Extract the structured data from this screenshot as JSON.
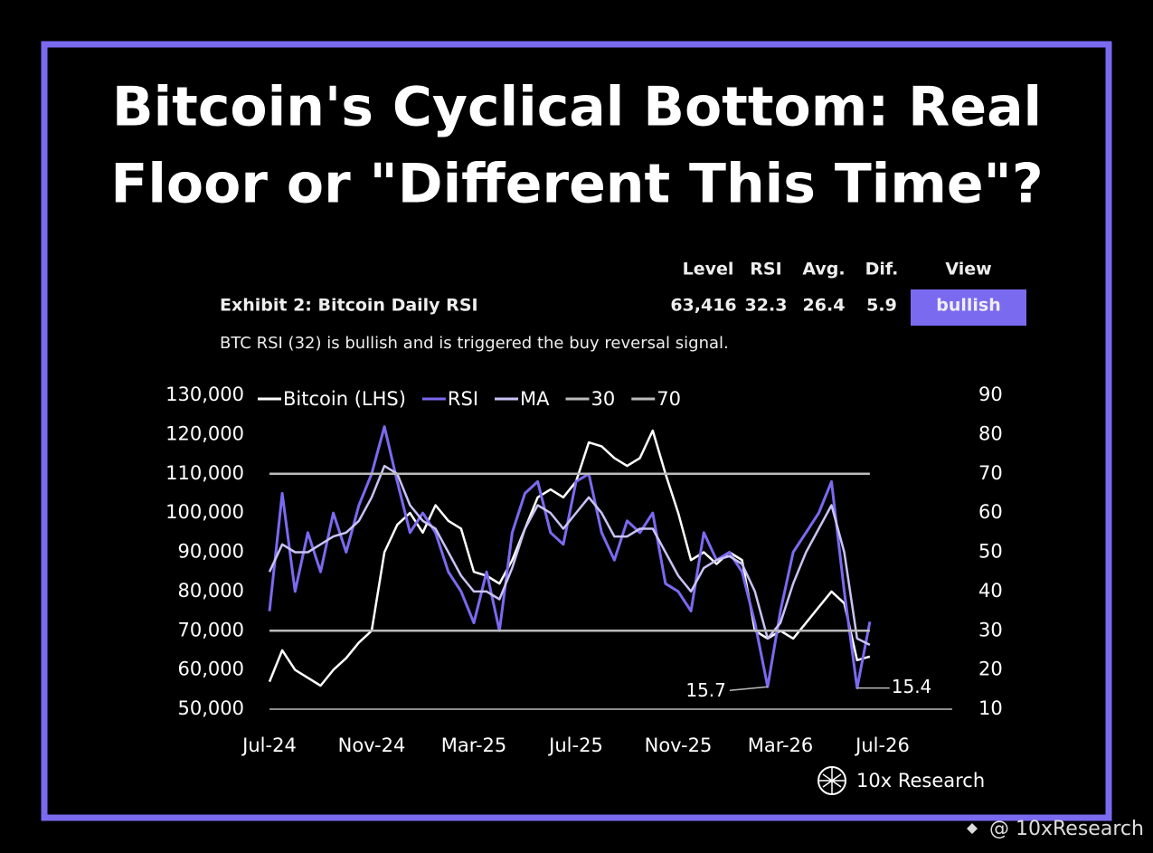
{
  "title": [
    "Bitcoin's Cyclical Bottom: Real",
    "Floor or \"Different This Time\"?"
  ],
  "summary": {
    "headers": [
      "Level",
      "RSI",
      "Avg.",
      "Dif.",
      "View"
    ],
    "label": "Exhibit 2: Bitcoin Daily RSI",
    "row": [
      "63,416",
      "32.3",
      "26.4",
      "5.9",
      "bullish"
    ]
  },
  "note": "BTC RSI (32) is bullish and is triggered the buy reversal signal.",
  "brand": "10x Research",
  "watermark": "@ 10xResearch",
  "chart_data": {
    "type": "line",
    "categories": [
      "Jul-24",
      null,
      null,
      null,
      null,
      null,
      null,
      null,
      "Nov-24",
      null,
      null,
      null,
      null,
      null,
      null,
      null,
      "Mar-25",
      null,
      null,
      null,
      null,
      null,
      null,
      null,
      "Jul-25",
      null,
      null,
      null,
      null,
      null,
      null,
      null,
      "Nov-25",
      null,
      null,
      null,
      null,
      null,
      null,
      null,
      "Mar-26",
      null,
      null,
      null,
      null,
      null,
      null,
      null,
      "Jul-26"
    ],
    "ylim": [
      50000,
      130000
    ],
    "yticks": [
      {
        "value": 50000,
        "label": "50,000"
      },
      {
        "value": 60000,
        "label": "60,000"
      },
      {
        "value": 70000,
        "label": "70,000"
      },
      {
        "value": 80000,
        "label": "80,000"
      },
      {
        "value": 90000,
        "label": "90,000"
      },
      {
        "value": 100000,
        "label": "100,000"
      },
      {
        "value": 110000,
        "label": "110,000"
      },
      {
        "value": 120000,
        "label": "120,000"
      },
      {
        "value": 130000,
        "label": "130,000"
      }
    ],
    "y2lim": [
      10,
      90
    ],
    "y2ticks": [
      10,
      20,
      30,
      40,
      50,
      60,
      70,
      80,
      90
    ],
    "series": [
      {
        "name": "Bitcoin (LHS)",
        "color": "#ffffff",
        "values": [
          57000,
          65000,
          60000,
          58000,
          56000,
          60000,
          63000,
          67000,
          70000,
          90000,
          97000,
          100000,
          95000,
          102000,
          98000,
          96000,
          85000,
          84000,
          82000,
          88000,
          96000,
          104000,
          106000,
          104000,
          108000,
          118000,
          117000,
          114000,
          112000,
          114000,
          121000,
          110000,
          100000,
          88000,
          90000,
          87000,
          90000,
          88000,
          70000,
          68000,
          70000,
          68000,
          72000,
          76000,
          80000,
          77000,
          62500,
          63416,
          null
        ]
      },
      {
        "name": "RSI",
        "color": "#7a6af0",
        "axis": "y2",
        "values": [
          35,
          65,
          40,
          55,
          45,
          60,
          50,
          62,
          70,
          82,
          68,
          55,
          60,
          55,
          45,
          40,
          32,
          45,
          30,
          55,
          65,
          68,
          55,
          52,
          68,
          70,
          55,
          48,
          58,
          55,
          60,
          42,
          40,
          35,
          55,
          48,
          50,
          45,
          32,
          15.7,
          35,
          50,
          55,
          60,
          68,
          40,
          15.4,
          32.3,
          null
        ]
      },
      {
        "name": "MA",
        "color": "#c9c3f5",
        "axis": "y2",
        "values": [
          45,
          52,
          50,
          50,
          52,
          54,
          55,
          58,
          64,
          72,
          70,
          62,
          58,
          56,
          50,
          44,
          40,
          40,
          38,
          46,
          56,
          62,
          60,
          56,
          60,
          64,
          60,
          54,
          54,
          56,
          56,
          50,
          44,
          40,
          46,
          48,
          49,
          47,
          40,
          28,
          32,
          42,
          50,
          56,
          62,
          50,
          28,
          26.4,
          null
        ]
      },
      {
        "name": "30",
        "color": "#bbbbbb",
        "axis": "y2",
        "values": [
          30,
          30,
          30,
          30,
          30,
          30,
          30,
          30,
          30,
          30,
          30,
          30,
          30,
          30,
          30,
          30,
          30,
          30,
          30,
          30,
          30,
          30,
          30,
          30,
          30,
          30,
          30,
          30,
          30,
          30,
          30,
          30,
          30,
          30,
          30,
          30,
          30,
          30,
          30,
          30,
          30,
          30,
          30,
          30,
          30,
          30,
          30,
          30,
          null
        ]
      },
      {
        "name": "70",
        "color": "#bbbbbb",
        "axis": "y2",
        "values": [
          70,
          70,
          70,
          70,
          70,
          70,
          70,
          70,
          70,
          70,
          70,
          70,
          70,
          70,
          70,
          70,
          70,
          70,
          70,
          70,
          70,
          70,
          70,
          70,
          70,
          70,
          70,
          70,
          70,
          70,
          70,
          70,
          70,
          70,
          70,
          70,
          70,
          70,
          70,
          70,
          70,
          70,
          70,
          70,
          70,
          70,
          70,
          70,
          null
        ]
      }
    ],
    "annotations": [
      15.7,
      15.4
    ]
  }
}
